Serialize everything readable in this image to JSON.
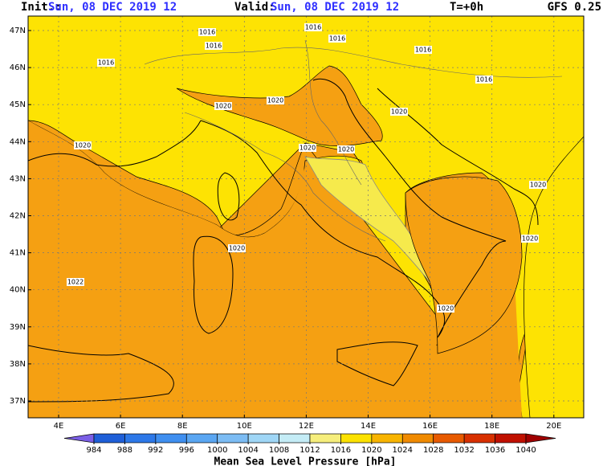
{
  "header": {
    "init_label": "Init.:",
    "init": "Sun, 08 DEC 2019  12",
    "valid_label": "Valid:",
    "valid": "Sun, 08 DEC 2019  12",
    "step": "T=+0h",
    "model": "GFS 0.25"
  },
  "map": {
    "lat_labels": [
      "47N",
      "46N",
      "45N",
      "44N",
      "43N",
      "42N",
      "41N",
      "40N",
      "39N",
      "38N",
      "37N"
    ],
    "lon_labels": [
      "4E",
      "6E",
      "8E",
      "10E",
      "12E",
      "14E",
      "16E",
      "18E",
      "20E"
    ],
    "isobar_labels": [
      "1016",
      "1016",
      "1016",
      "1016",
      "1016",
      "1016",
      "1016",
      "1020",
      "1020",
      "1020",
      "1020",
      "1020",
      "1020",
      "1020",
      "1020",
      "1020",
      "1020",
      "1022"
    ]
  },
  "colorbar": {
    "title": "Mean Sea Level Pressure [hPa]",
    "ticks": [
      984,
      988,
      992,
      996,
      1000,
      1004,
      1008,
      1012,
      1016,
      1020,
      1024,
      1028,
      1032,
      1036,
      1040
    ],
    "colors": [
      "#7b5fe6",
      "#1f5fd8",
      "#2d78e8",
      "#3f8ff0",
      "#5aa6f2",
      "#7cbcf4",
      "#9fd6f6",
      "#c4ecf6",
      "#f6ee7c",
      "#fce200",
      "#f8b400",
      "#f08a00",
      "#e85a00",
      "#d83000",
      "#c01000",
      "#a00000"
    ]
  }
}
